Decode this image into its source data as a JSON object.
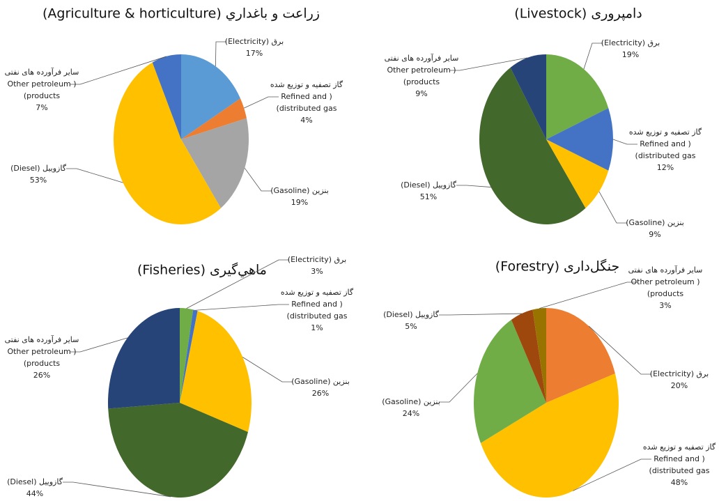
{
  "chart_data": [
    {
      "type": "pie",
      "title": "زراعت و باغداري (Agriculture & horticulture)",
      "categories": [
        [
          "برق (Electricity)"
        ],
        [
          "گاز تصفیه و توزیع شده",
          "Refined and )",
          "(distributed gas"
        ],
        [
          "بنزین (Gasoline)"
        ],
        [
          "گازوییل (Diesel)"
        ],
        [
          "سایر فرآورده های نفتی",
          "Other petroleum )",
          "(products"
        ]
      ],
      "values": [
        17,
        4,
        19,
        53,
        7
      ],
      "value_labels": [
        "17%",
        "4%",
        "19%",
        "53%",
        "7%"
      ],
      "colors": [
        "#5b9bd5",
        "#ed7d31",
        "#a5a5a5",
        "#ffc000",
        "#4472c4"
      ]
    },
    {
      "type": "pie",
      "title": "دامپروری (Livestock)",
      "categories": [
        [
          "برق (Electricity)"
        ],
        [
          "گاز تصفیه و توزیع شده",
          "Refined and )",
          "(distributed gas"
        ],
        [
          "بنزین (Gasoline)"
        ],
        [
          "گازوییل (Diesel)"
        ],
        [
          "سایر فرآورده های نفتی",
          "Other petroleum )",
          "(products"
        ]
      ],
      "values": [
        19,
        12,
        9,
        51,
        9
      ],
      "value_labels": [
        "19%",
        "12%",
        "9%",
        "51%",
        "9%"
      ],
      "colors": [
        "#70ad47",
        "#4472c4",
        "#ffc000",
        "#43682b",
        "#264478"
      ]
    },
    {
      "type": "pie",
      "title": "ماهي‌گیری (Fisheries)",
      "categories": [
        [
          "برق (Electricity)"
        ],
        [
          "گاز تصفیه و توزیع شده",
          "Refined and )",
          "(distributed gas"
        ],
        [
          "بنزین (Gasoline)"
        ],
        [
          "گازوییل (Diesel)"
        ],
        [
          "سایر فرآورده های نفتی",
          "Other petroleum )",
          "(products"
        ]
      ],
      "values": [
        3,
        1,
        26,
        44,
        26
      ],
      "value_labels": [
        "3%",
        "1%",
        "26%",
        "44%",
        "26%"
      ],
      "colors": [
        "#70ad47",
        "#4472c4",
        "#ffc000",
        "#43682b",
        "#264478"
      ]
    },
    {
      "type": "pie",
      "title": "جنگل‌داری (Forestry)",
      "categories": [
        [
          "برق (Electricity)"
        ],
        [
          "گاز تصفیه و توزیع شده",
          "Refined and )",
          "(distributed gas"
        ],
        [
          "بنزین (Gasoline)"
        ],
        [
          "گازوییل (Diesel)"
        ],
        [
          "سایر فرآورده های نفتی",
          "Other petroleum )",
          "(products"
        ]
      ],
      "values": [
        20,
        48,
        24,
        5,
        3
      ],
      "value_labels": [
        "20%",
        "48%",
        "24%",
        "5%",
        "3%"
      ],
      "colors": [
        "#ed7d31",
        "#ffc000",
        "#70ad47",
        "#9e480e",
        "#997300"
      ]
    }
  ]
}
